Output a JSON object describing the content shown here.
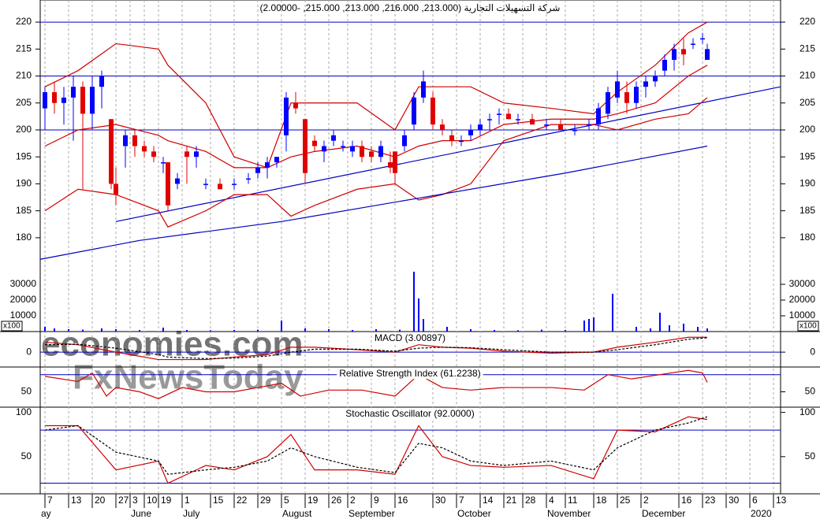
{
  "chart_data": {
    "type": "candlestick",
    "title": "شركة التسهيلات التجارية (213.000, 216.000, 213.000, 215.000, -2.00000)",
    "xlim": [
      -1,
      155.5
    ],
    "xticks": [
      {
        "value": 0,
        "label": "7"
      },
      {
        "value": 5,
        "label": "13"
      },
      {
        "value": 10,
        "label": "20"
      },
      {
        "value": 15,
        "label": "27"
      },
      {
        "value": 18,
        "label": "3"
      },
      {
        "value": 21,
        "label": "10"
      },
      {
        "value": 24,
        "label": "19"
      },
      {
        "value": 29,
        "label": "1"
      },
      {
        "value": 35,
        "label": "15"
      },
      {
        "value": 40,
        "label": "22"
      },
      {
        "value": 45,
        "label": "29"
      },
      {
        "value": 50,
        "label": "5"
      },
      {
        "value": 55,
        "label": "19"
      },
      {
        "value": 60,
        "label": "26"
      },
      {
        "value": 64,
        "label": "2"
      },
      {
        "value": 69,
        "label": "9"
      },
      {
        "value": 74,
        "label": "16"
      },
      {
        "value": 82,
        "label": "30"
      },
      {
        "value": 87,
        "label": "7"
      },
      {
        "value": 92,
        "label": "14"
      },
      {
        "value": 97,
        "label": "21"
      },
      {
        "value": 101,
        "label": "28"
      },
      {
        "value": 106,
        "label": "4"
      },
      {
        "value": 110,
        "label": "11"
      },
      {
        "value": 116,
        "label": "18"
      },
      {
        "value": 121,
        "label": "25"
      },
      {
        "value": 126,
        "label": "2"
      },
      {
        "value": 134,
        "label": "16"
      },
      {
        "value": 139,
        "label": "23"
      },
      {
        "value": 144,
        "label": "30"
      },
      {
        "value": 149,
        "label": "6"
      },
      {
        "value": 154,
        "label": "13"
      }
    ],
    "month_labels": [
      {
        "value": -1,
        "label": "ay"
      },
      {
        "value": 18,
        "label": "June"
      },
      {
        "value": 29,
        "label": "July"
      },
      {
        "value": 50,
        "label": "August"
      },
      {
        "value": 64,
        "label": "September"
      },
      {
        "value": 87,
        "label": "October"
      },
      {
        "value": 106,
        "label": "November"
      },
      {
        "value": 126,
        "label": "December"
      },
      {
        "value": 149,
        "label": "2020"
      }
    ],
    "ylim": [
      173.7,
      224.1
    ],
    "yticks": [
      180,
      185,
      190,
      195,
      200,
      205,
      210,
      215,
      220
    ],
    "up_color": "#0000ff",
    "down_color": "#e00000",
    "x": [
      0,
      2,
      4,
      6,
      8,
      10,
      12,
      14,
      15,
      17,
      19,
      21,
      23,
      25,
      26,
      28,
      30,
      32,
      34,
      37,
      40,
      43,
      45,
      47,
      49,
      51,
      53,
      55,
      57,
      59,
      61,
      63,
      65,
      67,
      69,
      71,
      73,
      74,
      76,
      78,
      80,
      82,
      84,
      86,
      88,
      90,
      92,
      94,
      96,
      98,
      100,
      103,
      106,
      109,
      112,
      115,
      117,
      119,
      121,
      123,
      125,
      127,
      129,
      131,
      133,
      135,
      137,
      139,
      140
    ],
    "open": [
      204,
      207,
      205,
      206,
      208,
      203,
      208,
      202,
      190,
      197,
      199,
      197,
      196,
      194,
      194,
      190,
      196,
      195,
      190,
      190,
      190,
      191,
      192,
      193,
      194,
      199,
      205,
      202,
      198,
      196,
      198,
      197,
      196,
      197,
      196,
      195,
      194,
      196,
      197,
      201,
      206,
      206,
      201,
      199,
      198,
      199,
      200,
      202,
      203,
      203,
      202,
      202,
      201,
      201,
      200,
      201,
      201,
      203,
      206,
      207,
      205,
      208,
      209,
      211,
      213,
      215,
      216,
      217,
      213
    ],
    "high": [
      208,
      209,
      208,
      210,
      209,
      210,
      211,
      202,
      193,
      200,
      200,
      198,
      197,
      195,
      194,
      192,
      197,
      197,
      191,
      191,
      191,
      192,
      194,
      195,
      195,
      207,
      207,
      202,
      199,
      198,
      200,
      198,
      198,
      198,
      197,
      198,
      196,
      196,
      200,
      207,
      211,
      207,
      202,
      200,
      199,
      201,
      202,
      203,
      204,
      204,
      203,
      203,
      202,
      202,
      201,
      202,
      205,
      208,
      211,
      209,
      209,
      210,
      211,
      214,
      216,
      217,
      217,
      218,
      216
    ],
    "low": [
      200,
      203,
      201,
      198,
      189,
      200,
      204,
      189,
      186,
      193,
      195,
      195,
      194,
      192,
      185,
      189,
      190,
      193,
      189,
      189,
      189,
      190,
      191,
      191,
      193,
      196,
      203,
      190,
      196,
      194,
      197,
      196,
      195,
      194,
      194,
      194,
      192,
      190,
      196,
      200,
      205,
      200,
      199,
      197,
      197,
      198,
      199,
      200,
      201,
      202,
      201,
      201,
      200,
      200,
      199,
      200,
      200,
      202,
      205,
      203,
      204,
      206,
      208,
      210,
      211,
      212,
      215,
      216,
      213
    ],
    "close": [
      207,
      205,
      206,
      208,
      203,
      208,
      210,
      190,
      188,
      199,
      197,
      196,
      195,
      194,
      186,
      191,
      195,
      196,
      190,
      189,
      190,
      191,
      193,
      194,
      195,
      206,
      204,
      192,
      197,
      197,
      199,
      197,
      197,
      195,
      195,
      197,
      193,
      192,
      199,
      206,
      209,
      201,
      200,
      198,
      198,
      200,
      201,
      202,
      203,
      202,
      202,
      201,
      201,
      200,
      200,
      201,
      204,
      207,
      209,
      205,
      208,
      209,
      210,
      213,
      215,
      214,
      216,
      217,
      215
    ],
    "hlines": [
      220,
      210,
      200
    ],
    "hline_color": "#0000c0",
    "trendline": {
      "color": "#0000c0",
      "x": [
        15,
        155.5
      ],
      "values": [
        183,
        208
      ]
    },
    "overlays": [
      {
        "color": "#d00000",
        "x": [
          0,
          7,
          15,
          24,
          26,
          34,
          40,
          47,
          52,
          57,
          66,
          74,
          79,
          84,
          90,
          97,
          107,
          116,
          121,
          129,
          136,
          140
        ],
        "values": [
          208,
          211,
          216,
          215,
          212,
          205,
          195,
          193,
          205,
          205,
          205,
          200,
          208,
          208,
          208,
          205,
          204,
          203,
          207,
          212,
          218,
          220
        ]
      },
      {
        "color": "#d00000",
        "x": [
          0,
          7,
          15,
          24,
          26,
          34,
          40,
          47,
          52,
          57,
          66,
          74,
          79,
          84,
          90,
          97,
          107,
          116,
          121,
          129,
          136,
          140
        ],
        "values": [
          197,
          200,
          201,
          199,
          198,
          196,
          193,
          193,
          195,
          196,
          197,
          195,
          197,
          198,
          198,
          201,
          202,
          202,
          203,
          205,
          210,
          212
        ]
      },
      {
        "color": "#d00000",
        "x": [
          0,
          7,
          15,
          24,
          26,
          34,
          40,
          47,
          52,
          57,
          66,
          74,
          79,
          84,
          90,
          97,
          107,
          116,
          121,
          129,
          136,
          140
        ],
        "values": [
          185,
          189,
          188,
          185,
          182,
          185,
          188,
          188,
          184,
          186,
          189,
          190,
          187,
          188,
          190,
          198,
          201,
          201,
          200,
          202,
          203,
          206
        ]
      },
      {
        "color": "#0000c0",
        "x": [
          -1,
          20,
          50,
          80,
          110,
          140
        ],
        "values": [
          176,
          179.5,
          183,
          187.5,
          192,
          197
        ]
      }
    ],
    "volume": {
      "color": "#0000ff",
      "unit": "x100",
      "ylim": [
        0,
        38000
      ],
      "yticks": [
        10000,
        20000,
        30000
      ],
      "x": [
        0,
        2,
        5,
        8,
        12,
        15,
        20,
        25,
        30,
        35,
        40,
        45,
        50,
        55,
        60,
        65,
        70,
        75,
        78,
        79,
        80,
        85,
        90,
        95,
        100,
        105,
        110,
        114,
        115,
        116,
        120,
        125,
        128,
        130,
        132,
        135,
        138,
        140
      ],
      "values": [
        3000,
        2000,
        1500,
        1200,
        2000,
        1500,
        1000,
        2500,
        1000,
        800,
        1000,
        1200,
        7000,
        2000,
        1500,
        1000,
        1500,
        1200,
        38000,
        21000,
        8000,
        3000,
        1500,
        1000,
        800,
        1200,
        1000,
        7000,
        8000,
        9000,
        24000,
        3000,
        2000,
        12000,
        4000,
        5000,
        3000,
        2000
      ]
    },
    "indicators": [
      {
        "type": "line",
        "title": "MACD (3.00897)",
        "ylim": [
          -3,
          4
        ],
        "yticks": [
          0
        ],
        "hlines": [
          0
        ],
        "series": [
          {
            "color": "#d00000",
            "dash": false,
            "x": [
              0,
              7,
              15,
              24,
              26,
              34,
              40,
              47,
              52,
              57,
              66,
              74,
              79,
              84,
              90,
              97,
              107,
              116,
              121,
              129,
              136,
              140
            ],
            "values": [
              2,
              1.5,
              0,
              -1.5,
              -1.5,
              -1.5,
              -1,
              -0.5,
              1,
              1,
              0.5,
              0,
              1.5,
              1,
              0.8,
              0.2,
              -0.2,
              0,
              1,
              2,
              3,
              3
            ]
          },
          {
            "color": "#000000",
            "dash": true,
            "x": [
              0,
              7,
              15,
              24,
              26,
              34,
              40,
              47,
              52,
              57,
              66,
              74,
              79,
              84,
              90,
              97,
              107,
              116,
              121,
              129,
              136,
              140
            ],
            "values": [
              1.5,
              1.6,
              0.8,
              -0.5,
              -1,
              -1.3,
              -1.2,
              -0.8,
              0,
              0.6,
              0.6,
              0.2,
              0.8,
              1,
              0.9,
              0.5,
              0,
              0,
              0.5,
              1.5,
              2.6,
              2.9
            ]
          }
        ]
      },
      {
        "type": "line",
        "title": "Relative Strength Index (61.2238)",
        "ylim": [
          33,
          78
        ],
        "yticks": [
          50
        ],
        "hlines": [
          70
        ],
        "series": [
          {
            "color": "#d00000",
            "dash": false,
            "x": [
              0,
              7,
              10,
              13,
              15,
              20,
              24,
              29,
              34,
              40,
              45,
              50,
              54,
              60,
              67,
              74,
              79,
              84,
              90,
              97,
              107,
              114,
              119,
              124,
              130,
              136,
              139,
              140
            ],
            "values": [
              68,
              62,
              72,
              45,
              55,
              50,
              42,
              55,
              50,
              50,
              55,
              60,
              45,
              52,
              52,
              45,
              70,
              55,
              52,
              55,
              55,
              52,
              70,
              65,
              70,
              75,
              72,
              61
            ]
          }
        ]
      },
      {
        "type": "line",
        "title": "Stochastic Oscillator (92.0000)",
        "ylim": [
          8,
          105
        ],
        "yticks": [
          50,
          100
        ],
        "hlines": [
          80,
          20
        ],
        "series": [
          {
            "color": "#d00000",
            "dash": false,
            "x": [
              0,
              7,
              15,
              24,
              26,
              34,
              40,
              47,
              52,
              57,
              66,
              74,
              79,
              84,
              90,
              97,
              107,
              116,
              121,
              129,
              136,
              140
            ],
            "values": [
              85,
              85,
              35,
              45,
              20,
              40,
              35,
              50,
              75,
              35,
              35,
              30,
              85,
              50,
              40,
              38,
              40,
              25,
              80,
              78,
              95,
              92
            ]
          },
          {
            "color": "#000000",
            "dash": true,
            "x": [
              0,
              7,
              15,
              24,
              26,
              34,
              40,
              47,
              52,
              57,
              66,
              74,
              79,
              84,
              90,
              97,
              107,
              116,
              121,
              129,
              136,
              140
            ],
            "values": [
              80,
              85,
              55,
              45,
              30,
              35,
              38,
              45,
              60,
              50,
              38,
              32,
              65,
              60,
              45,
              40,
              45,
              35,
              60,
              80,
              88,
              95
            ]
          }
        ]
      }
    ],
    "watermarks": [
      "economies.com",
      "FxNewsToday"
    ]
  }
}
